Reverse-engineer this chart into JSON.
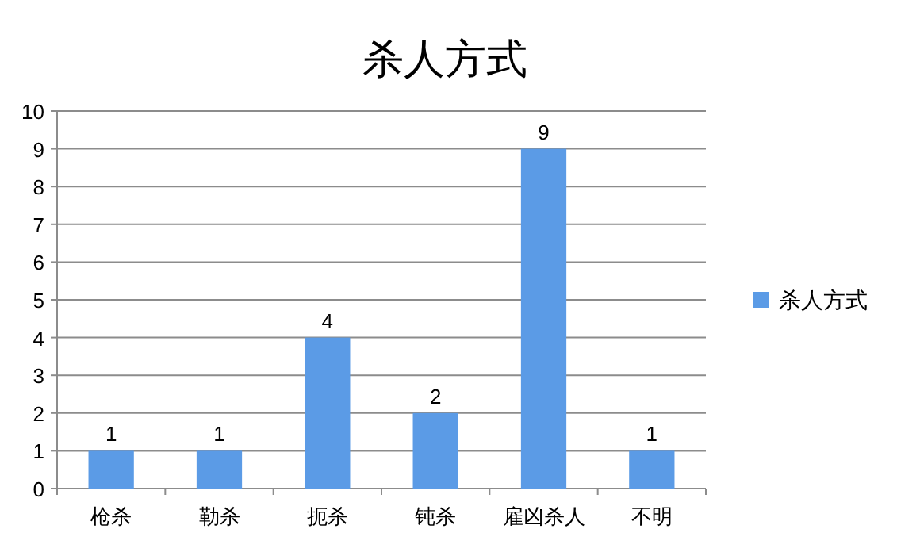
{
  "chart_data": {
    "type": "bar",
    "title": "杀人方式",
    "categories": [
      "枪杀",
      "勒杀",
      "扼杀",
      "钝杀",
      "雇凶杀人",
      "不明"
    ],
    "series": [
      {
        "name": "杀人方式",
        "color": "#5b9be6",
        "values": [
          1,
          1,
          4,
          2,
          9,
          1
        ]
      }
    ],
    "ylim": [
      0,
      10
    ],
    "yticks": [
      0,
      1,
      2,
      3,
      4,
      5,
      6,
      7,
      8,
      9,
      10
    ],
    "grid": "y",
    "legend": "right",
    "data_labels": true
  }
}
